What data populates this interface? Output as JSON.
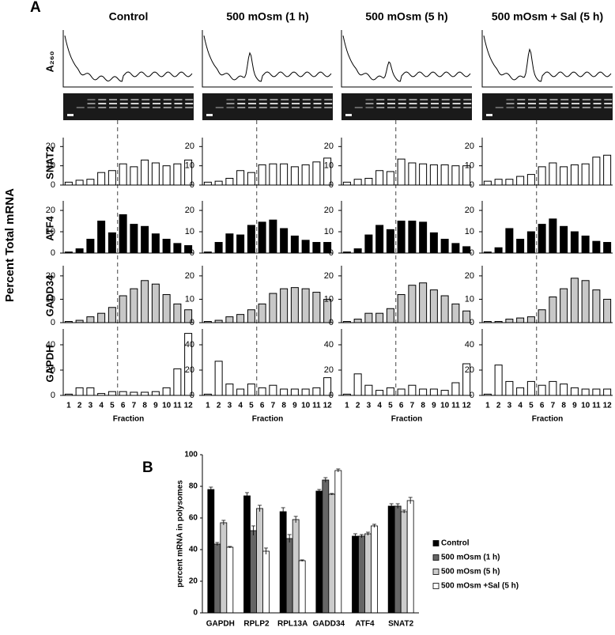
{
  "panel_labels": [
    "A",
    "B"
  ],
  "shared_ylabel": "Percent Total mRNA",
  "trace_label": "A₂₆₀",
  "chart_data": [
    {
      "type": "bar",
      "title": "Control",
      "ylabel": "SNAT2",
      "values": [
        1.5,
        2.5,
        3,
        6.5,
        7.5,
        11,
        9.5,
        13,
        11.5,
        10,
        11,
        13
      ],
      "color": "#ffffff",
      "ylim": [
        0,
        23
      ],
      "yticks": [
        0,
        10,
        20
      ]
    },
    {
      "type": "bar",
      "ylabel": "ATF4",
      "values": [
        0.5,
        2,
        6.5,
        15,
        9.5,
        18,
        13.5,
        12.5,
        9,
        6.5,
        4.5,
        3.5
      ],
      "color": "#000000",
      "ylim": [
        0,
        23
      ],
      "yticks": [
        0,
        10,
        20
      ]
    },
    {
      "type": "bar",
      "ylabel": "GADD34",
      "values": [
        0.5,
        1,
        2.5,
        4,
        6.5,
        11.5,
        14.5,
        18,
        16.5,
        12,
        8,
        5.5
      ],
      "color": "#c8c8c8",
      "ylim": [
        0,
        23
      ],
      "yticks": [
        0,
        10,
        20
      ]
    },
    {
      "type": "bar",
      "ylabel": "GAPDH",
      "xlabel": "Fraction",
      "categories": [
        1,
        2,
        3,
        4,
        5,
        6,
        7,
        8,
        9,
        10,
        11,
        12
      ],
      "values": [
        1,
        6,
        6,
        1.5,
        3,
        3,
        2.5,
        2.5,
        3,
        6,
        21,
        49
      ],
      "color": "#ffffff",
      "ylim": [
        0,
        50
      ],
      "yticks": [
        0,
        20,
        40
      ]
    },
    {
      "type": "bar",
      "title": "500 mOsm (1 h)",
      "values": [
        1.5,
        2,
        3.5,
        7.5,
        6.5,
        10.5,
        11,
        11,
        9.5,
        10.5,
        12,
        14
      ],
      "color": "#ffffff",
      "ylim": [
        0,
        23
      ],
      "yticks": [
        0,
        10,
        20
      ]
    },
    {
      "type": "bar",
      "values": [
        0.5,
        5,
        9,
        8.5,
        13,
        14.5,
        15.5,
        11.5,
        8,
        6,
        5,
        5
      ],
      "color": "#000000",
      "ylim": [
        0,
        23
      ],
      "yticks": [
        0,
        10,
        20
      ]
    },
    {
      "type": "bar",
      "values": [
        0.5,
        1,
        2.5,
        3.5,
        5.5,
        8,
        12.5,
        14.5,
        15,
        14.5,
        13,
        10
      ],
      "color": "#c8c8c8",
      "ylim": [
        0,
        23
      ],
      "yticks": [
        0,
        10,
        20
      ]
    },
    {
      "type": "bar",
      "xlabel": "Fraction",
      "categories": [
        1,
        2,
        3,
        4,
        5,
        6,
        7,
        8,
        9,
        10,
        11,
        12
      ],
      "values": [
        1,
        27,
        9,
        5,
        9,
        6,
        8,
        5,
        5,
        5,
        6,
        14
      ],
      "color": "#ffffff",
      "ylim": [
        0,
        50
      ],
      "yticks": [
        0,
        20,
        40
      ]
    },
    {
      "type": "bar",
      "title": "500 mOsm (5 h)",
      "values": [
        1.5,
        3,
        3.5,
        7.5,
        7,
        13.5,
        11.5,
        11,
        10.5,
        10.5,
        10,
        10
      ],
      "color": "#ffffff",
      "ylim": [
        0,
        23
      ],
      "yticks": [
        0,
        10,
        20
      ]
    },
    {
      "type": "bar",
      "values": [
        0.5,
        2,
        8.5,
        13,
        11,
        15,
        15,
        14.5,
        9.5,
        6.5,
        4.5,
        3
      ],
      "color": "#000000",
      "ylim": [
        0,
        23
      ],
      "yticks": [
        0,
        10,
        20
      ]
    },
    {
      "type": "bar",
      "values": [
        0.5,
        1.5,
        4,
        4,
        6,
        12,
        16,
        17,
        14,
        11.5,
        8,
        5
      ],
      "color": "#c8c8c8",
      "ylim": [
        0,
        23
      ],
      "yticks": [
        0,
        10,
        20
      ]
    },
    {
      "type": "bar",
      "xlabel": "Fraction",
      "categories": [
        1,
        2,
        3,
        4,
        5,
        6,
        7,
        8,
        9,
        10,
        11,
        12
      ],
      "values": [
        1,
        17,
        8,
        4,
        6,
        5,
        8,
        5,
        5,
        4,
        10,
        25
      ],
      "color": "#ffffff",
      "ylim": [
        0,
        50
      ],
      "yticks": [
        0,
        20,
        40
      ]
    },
    {
      "type": "bar",
      "title": "500 mOsm + Sal (5 h)",
      "values": [
        2,
        3,
        3,
        4.5,
        5.5,
        9.5,
        11.5,
        9.5,
        10.5,
        11,
        14.5,
        15.5
      ],
      "color": "#ffffff",
      "ylim": [
        0,
        23
      ],
      "yticks": [
        0,
        10,
        20
      ]
    },
    {
      "type": "bar",
      "values": [
        0.5,
        2.5,
        11.5,
        6.5,
        10,
        13.5,
        16,
        12.5,
        10,
        8,
        5.5,
        5
      ],
      "color": "#000000",
      "ylim": [
        0,
        23
      ],
      "yticks": [
        0,
        10,
        20
      ]
    },
    {
      "type": "bar",
      "values": [
        0.5,
        0.5,
        1.5,
        2,
        2.5,
        5.5,
        11,
        14.5,
        19,
        18,
        14,
        10
      ],
      "color": "#c8c8c8",
      "ylim": [
        0,
        23
      ],
      "yticks": [
        0,
        10,
        20
      ]
    },
    {
      "type": "bar",
      "xlabel": "Fraction",
      "categories": [
        1,
        2,
        3,
        4,
        5,
        6,
        7,
        8,
        9,
        10,
        11,
        12
      ],
      "values": [
        1,
        24,
        11,
        6,
        11,
        8,
        11,
        9,
        6,
        5,
        5,
        5
      ],
      "color": "#ffffff",
      "ylim": [
        0,
        50
      ],
      "yticks": [
        0,
        20,
        40
      ]
    },
    {
      "type": "grouped-bar",
      "ylabel": "percent mRNA in polysomes",
      "categories": [
        "GAPDH",
        "RPLP2",
        "RPL13A",
        "GADD34",
        "ATF4",
        "SNAT2"
      ],
      "series": [
        {
          "name": "Control",
          "color": "#000000",
          "values": [
            78,
            74,
            64,
            77,
            48.5,
            67.5
          ],
          "errors": [
            1.5,
            2,
            2.5,
            1,
            1.5,
            1.5
          ]
        },
        {
          "name": "500 mOsm (1 h)",
          "color": "#666666",
          "values": [
            43.5,
            52,
            47,
            84,
            48.5,
            67.5
          ],
          "errors": [
            1,
            3,
            2.5,
            1.5,
            1,
            1.5
          ]
        },
        {
          "name": "500 mOsm (5 h)",
          "color": "#cccccc",
          "values": [
            57,
            66,
            59,
            75,
            50,
            64
          ],
          "errors": [
            1.5,
            2,
            2,
            0.5,
            1,
            1
          ]
        },
        {
          "name": "500 mOsm +Sal (5 h)",
          "color": "#ffffff",
          "values": [
            41.5,
            39,
            33,
            90,
            55,
            71
          ],
          "errors": [
            0.5,
            2,
            0.5,
            1,
            1,
            2
          ]
        }
      ],
      "ylim": [
        0,
        100
      ],
      "yticks": [
        0,
        20,
        40,
        60,
        80,
        100
      ],
      "legend": "right"
    }
  ]
}
